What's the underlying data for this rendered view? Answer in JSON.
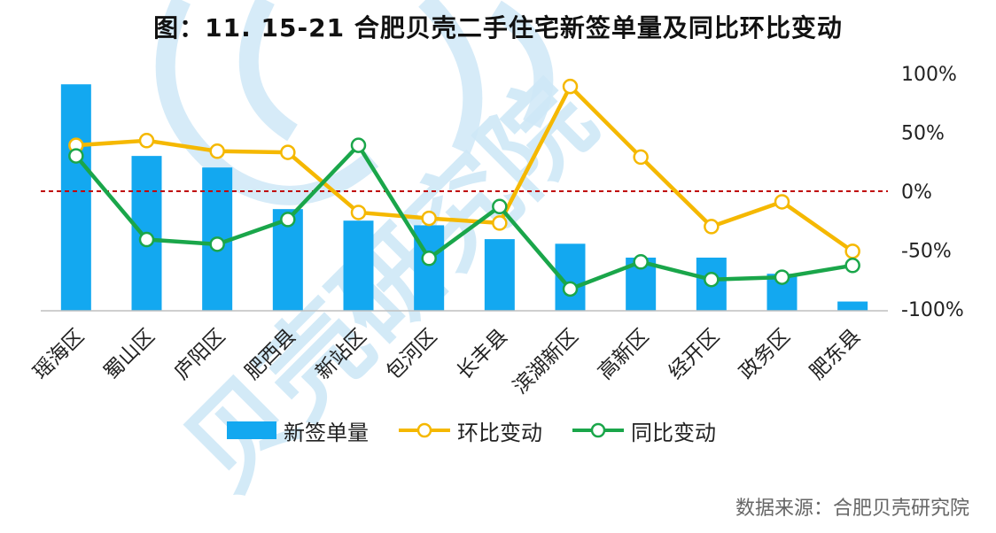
{
  "chart_data": {
    "type": "bar",
    "title": "图：11. 15-21 合肥贝壳二手住宅新签单量及同比环比变动",
    "categories": [
      "瑶海区",
      "蜀山区",
      "庐阳区",
      "肥西县",
      "新站区",
      "包河区",
      "长丰县",
      "滨湖新区",
      "高新区",
      "经开区",
      "政务区",
      "肥东县"
    ],
    "series": [
      {
        "name": "新签单量",
        "type": "bar",
        "axis": "left",
        "color": "#13a8f0",
        "values": [
          98,
          67,
          62,
          44,
          39,
          37,
          31,
          29,
          23,
          23,
          16,
          4
        ]
      },
      {
        "name": "环比变动",
        "type": "line",
        "axis": "right",
        "color": "#f5b800",
        "values": [
          39,
          43,
          34,
          33,
          -18,
          -23,
          -27,
          89,
          29,
          -30,
          -9,
          -51
        ]
      },
      {
        "name": "同比变动",
        "type": "line",
        "axis": "right",
        "color": "#1aa64a",
        "values": [
          30,
          -41,
          -45,
          -24,
          39,
          -57,
          -13,
          -83,
          -60,
          -75,
          -73,
          -63
        ]
      }
    ],
    "y2_ticks": [
      "100%",
      "50%",
      "0%",
      "-50%",
      "-100%"
    ],
    "y2lim": [
      -100,
      100
    ],
    "ylim": [
      0,
      100
    ],
    "reference_line": {
      "value": 0,
      "style": "dashed",
      "color": "#c00000"
    },
    "legend": "bottom"
  },
  "source": "数据来源：合肥贝壳研究院",
  "watermark": "贝壳研究院"
}
